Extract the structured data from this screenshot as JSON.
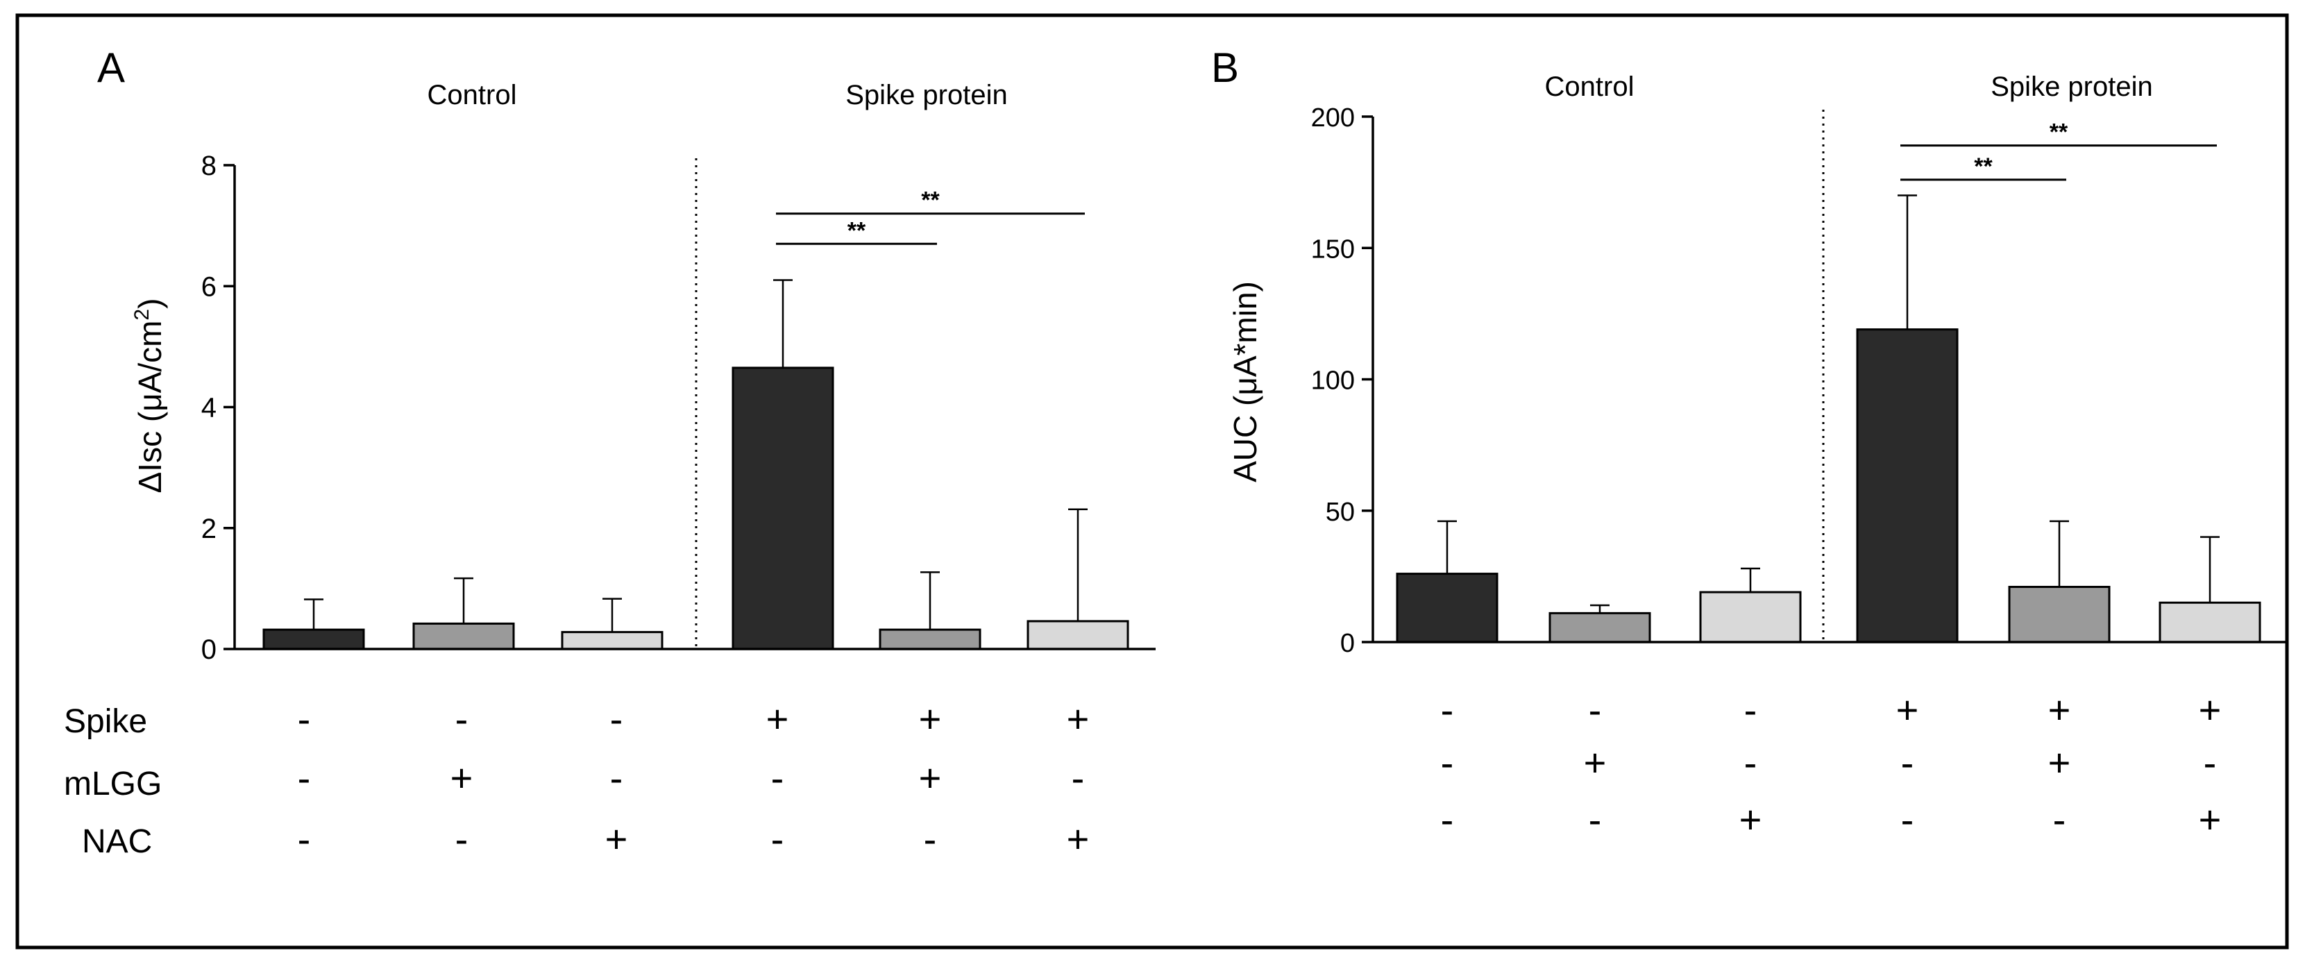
{
  "chart_data": [
    {
      "type": "bar",
      "panel_label": "A",
      "ylabel_text": "ΔIsc (μA/cm",
      "ylabel_sup": "2",
      "ylabel_close": ")",
      "ylim": [
        0,
        8
      ],
      "yticks": [
        "0",
        "2",
        "4",
        "6",
        "8"
      ],
      "groups": [
        "Control",
        "Spike protein"
      ],
      "categories": [
        "-/-/-",
        "-/+/-",
        "-/-/+",
        "+/-/-",
        "+/+/-",
        "+/-/+"
      ],
      "values": [
        0.32,
        0.42,
        0.28,
        4.65,
        0.32,
        0.46
      ],
      "errors": [
        0.5,
        0.75,
        0.55,
        1.45,
        0.95,
        1.85
      ],
      "bar_colors": [
        "#2b2b2b",
        "#9a9a9a",
        "#d9d9d9",
        "#2b2b2b",
        "#9a9a9a",
        "#d9d9d9"
      ],
      "significance": [
        {
          "from": 3,
          "to": 4,
          "label": "**",
          "y": 6.7
        },
        {
          "from": 3,
          "to": 5,
          "label": "**",
          "y": 7.2
        }
      ],
      "row_labels": [
        "Spike",
        "mLGG",
        "NAC"
      ],
      "conditions": [
        [
          "-",
          "-",
          "-",
          "+",
          "+",
          "+"
        ],
        [
          "-",
          "+",
          "-",
          "-",
          "+",
          "-"
        ],
        [
          "-",
          "-",
          "+",
          "-",
          "-",
          "+"
        ]
      ]
    },
    {
      "type": "bar",
      "panel_label": "B",
      "ylabel_text": "AUC (μA*min)",
      "ylim": [
        0,
        200
      ],
      "yticks": [
        "0",
        "50",
        "100",
        "150",
        "200"
      ],
      "groups": [
        "Control",
        "Spike protein"
      ],
      "categories": [
        "-/-/-",
        "-/+/-",
        "-/-/+",
        "+/-/-",
        "+/+/-",
        "+/-/+"
      ],
      "values": [
        26,
        11,
        19,
        119,
        21,
        15
      ],
      "errors": [
        20,
        3,
        9,
        51,
        25,
        25
      ],
      "bar_colors": [
        "#2b2b2b",
        "#9a9a9a",
        "#d9d9d9",
        "#2b2b2b",
        "#9a9a9a",
        "#d9d9d9"
      ],
      "significance": [
        {
          "from": 3,
          "to": 4,
          "label": "**",
          "y": 176
        },
        {
          "from": 3,
          "to": 5,
          "label": "**",
          "y": 189
        }
      ],
      "conditions": [
        [
          "-",
          "-",
          "-",
          "+",
          "+",
          "+"
        ],
        [
          "-",
          "+",
          "-",
          "-",
          "+",
          "-"
        ],
        [
          "-",
          "-",
          "+",
          "-",
          "-",
          "+"
        ]
      ]
    }
  ]
}
